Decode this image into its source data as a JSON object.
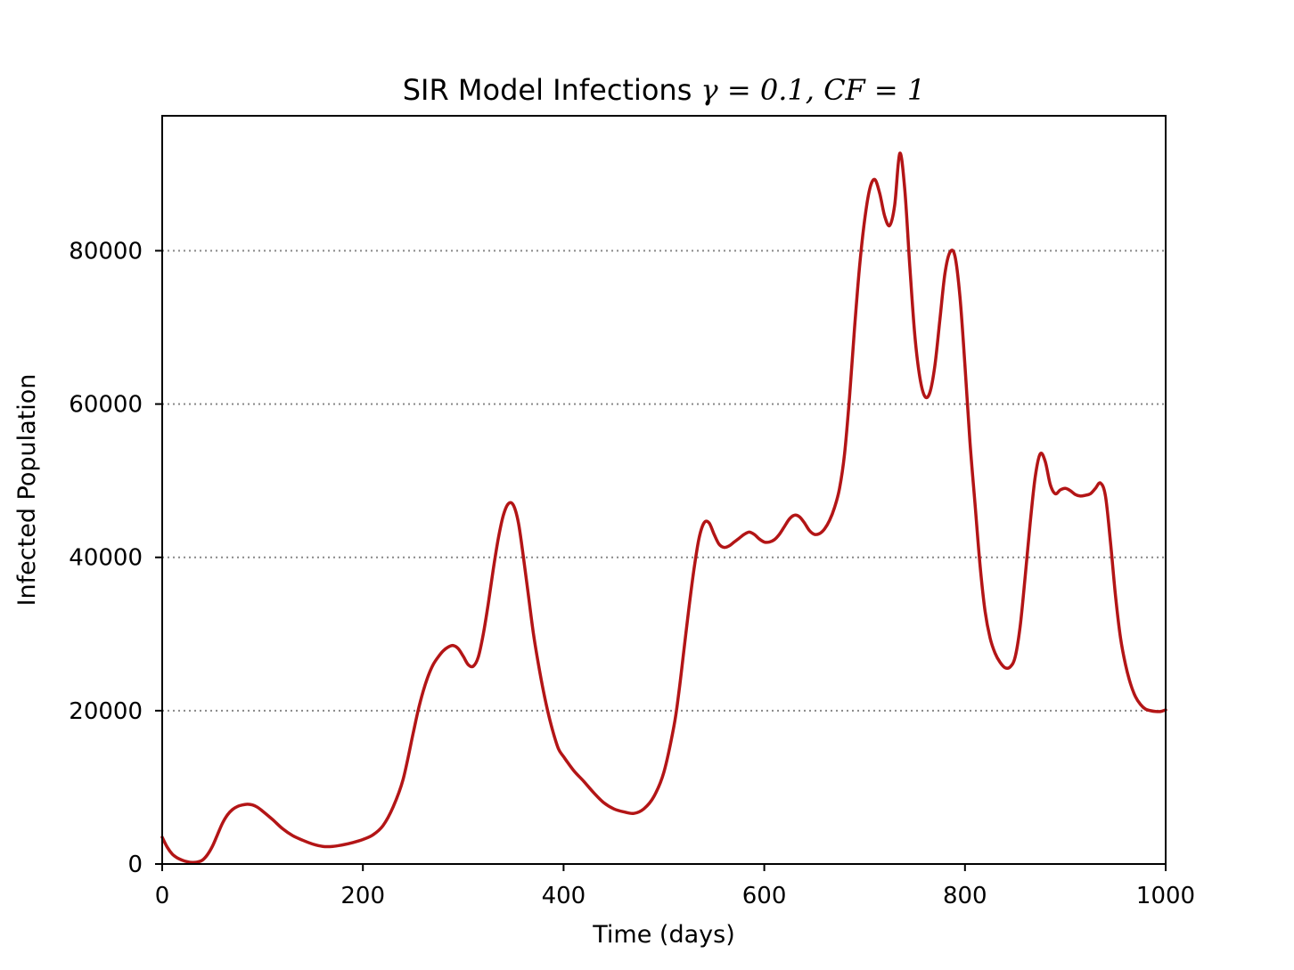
{
  "chart_data": {
    "type": "line",
    "title": {
      "text": "SIR Model Infections ",
      "math": "γ = 0.1, CF = 1"
    },
    "xlabel": "Time (days)",
    "ylabel": "Infected Population",
    "xlim": [
      0,
      1000
    ],
    "ylim": [
      0,
      97600
    ],
    "xticks": [
      0,
      200,
      400,
      600,
      800,
      1000
    ],
    "xtick_labels": [
      "0",
      "200",
      "400",
      "600",
      "800",
      "1000"
    ],
    "yticks": [
      0,
      20000,
      40000,
      60000,
      80000
    ],
    "ytick_labels": [
      "0",
      "20000",
      "40000",
      "60000",
      "80000"
    ],
    "grid": {
      "axis": "y",
      "style": "dotted",
      "color": "#888888"
    },
    "legend": "none",
    "series": [
      {
        "color": "#b31516",
        "points": [
          [
            0,
            3500
          ],
          [
            5,
            2200
          ],
          [
            10,
            1300
          ],
          [
            15,
            800
          ],
          [
            20,
            500
          ],
          [
            25,
            300
          ],
          [
            30,
            200
          ],
          [
            35,
            250
          ],
          [
            40,
            500
          ],
          [
            45,
            1200
          ],
          [
            50,
            2300
          ],
          [
            55,
            3800
          ],
          [
            60,
            5300
          ],
          [
            65,
            6400
          ],
          [
            70,
            7100
          ],
          [
            75,
            7500
          ],
          [
            80,
            7700
          ],
          [
            85,
            7800
          ],
          [
            90,
            7700
          ],
          [
            95,
            7400
          ],
          [
            100,
            6900
          ],
          [
            110,
            5800
          ],
          [
            120,
            4600
          ],
          [
            130,
            3700
          ],
          [
            140,
            3100
          ],
          [
            150,
            2600
          ],
          [
            160,
            2300
          ],
          [
            170,
            2300
          ],
          [
            180,
            2500
          ],
          [
            190,
            2800
          ],
          [
            200,
            3200
          ],
          [
            210,
            3800
          ],
          [
            220,
            5000
          ],
          [
            230,
            7400
          ],
          [
            240,
            11000
          ],
          [
            250,
            17000
          ],
          [
            255,
            20000
          ],
          [
            260,
            22500
          ],
          [
            265,
            24500
          ],
          [
            270,
            26000
          ],
          [
            275,
            27000
          ],
          [
            280,
            27800
          ],
          [
            285,
            28300
          ],
          [
            290,
            28500
          ],
          [
            295,
            28100
          ],
          [
            300,
            27100
          ],
          [
            305,
            26000
          ],
          [
            310,
            25800
          ],
          [
            315,
            27000
          ],
          [
            320,
            30000
          ],
          [
            325,
            34000
          ],
          [
            330,
            38500
          ],
          [
            335,
            42500
          ],
          [
            340,
            45500
          ],
          [
            345,
            47000
          ],
          [
            350,
            46800
          ],
          [
            355,
            44500
          ],
          [
            360,
            40000
          ],
          [
            365,
            35000
          ],
          [
            370,
            30000
          ],
          [
            375,
            26000
          ],
          [
            380,
            22500
          ],
          [
            385,
            19500
          ],
          [
            390,
            17000
          ],
          [
            395,
            15000
          ],
          [
            400,
            14000
          ],
          [
            410,
            12200
          ],
          [
            420,
            10800
          ],
          [
            430,
            9300
          ],
          [
            440,
            8000
          ],
          [
            450,
            7200
          ],
          [
            460,
            6800
          ],
          [
            470,
            6600
          ],
          [
            480,
            7200
          ],
          [
            490,
            8800
          ],
          [
            500,
            12000
          ],
          [
            510,
            18000
          ],
          [
            515,
            22500
          ],
          [
            520,
            28000
          ],
          [
            525,
            33500
          ],
          [
            530,
            38500
          ],
          [
            535,
            42500
          ],
          [
            540,
            44500
          ],
          [
            545,
            44500
          ],
          [
            550,
            43000
          ],
          [
            555,
            41700
          ],
          [
            560,
            41300
          ],
          [
            565,
            41500
          ],
          [
            570,
            42000
          ],
          [
            575,
            42500
          ],
          [
            580,
            43000
          ],
          [
            585,
            43300
          ],
          [
            590,
            43000
          ],
          [
            595,
            42400
          ],
          [
            600,
            42000
          ],
          [
            605,
            42000
          ],
          [
            610,
            42300
          ],
          [
            615,
            43000
          ],
          [
            620,
            44000
          ],
          [
            625,
            45000
          ],
          [
            630,
            45500
          ],
          [
            635,
            45300
          ],
          [
            640,
            44500
          ],
          [
            645,
            43500
          ],
          [
            650,
            43000
          ],
          [
            655,
            43100
          ],
          [
            660,
            43700
          ],
          [
            665,
            44800
          ],
          [
            670,
            46500
          ],
          [
            675,
            49000
          ],
          [
            680,
            53500
          ],
          [
            685,
            61000
          ],
          [
            690,
            70000
          ],
          [
            695,
            78000
          ],
          [
            700,
            84000
          ],
          [
            705,
            88000
          ],
          [
            710,
            89300
          ],
          [
            715,
            87500
          ],
          [
            720,
            84500
          ],
          [
            725,
            83300
          ],
          [
            730,
            86000
          ],
          [
            735,
            92700
          ],
          [
            740,
            88000
          ],
          [
            745,
            78000
          ],
          [
            750,
            69000
          ],
          [
            755,
            63500
          ],
          [
            760,
            61000
          ],
          [
            765,
            61500
          ],
          [
            770,
            65000
          ],
          [
            775,
            71000
          ],
          [
            780,
            77000
          ],
          [
            785,
            79800
          ],
          [
            790,
            79300
          ],
          [
            795,
            74000
          ],
          [
            800,
            65000
          ],
          [
            805,
            55000
          ],
          [
            810,
            47000
          ],
          [
            815,
            39000
          ],
          [
            820,
            33000
          ],
          [
            825,
            29500
          ],
          [
            830,
            27500
          ],
          [
            835,
            26300
          ],
          [
            840,
            25600
          ],
          [
            845,
            25700
          ],
          [
            850,
            27000
          ],
          [
            855,
            31000
          ],
          [
            860,
            37500
          ],
          [
            865,
            44500
          ],
          [
            870,
            50500
          ],
          [
            875,
            53500
          ],
          [
            880,
            52500
          ],
          [
            885,
            49500
          ],
          [
            890,
            48300
          ],
          [
            895,
            48800
          ],
          [
            900,
            49000
          ],
          [
            905,
            48700
          ],
          [
            910,
            48200
          ],
          [
            915,
            48000
          ],
          [
            920,
            48100
          ],
          [
            925,
            48300
          ],
          [
            930,
            49000
          ],
          [
            935,
            49700
          ],
          [
            940,
            48000
          ],
          [
            945,
            42000
          ],
          [
            950,
            35000
          ],
          [
            955,
            29500
          ],
          [
            960,
            26000
          ],
          [
            965,
            23500
          ],
          [
            970,
            21800
          ],
          [
            975,
            20800
          ],
          [
            980,
            20200
          ],
          [
            985,
            20000
          ],
          [
            990,
            19900
          ],
          [
            995,
            19900
          ],
          [
            1000,
            20100
          ]
        ]
      }
    ]
  }
}
